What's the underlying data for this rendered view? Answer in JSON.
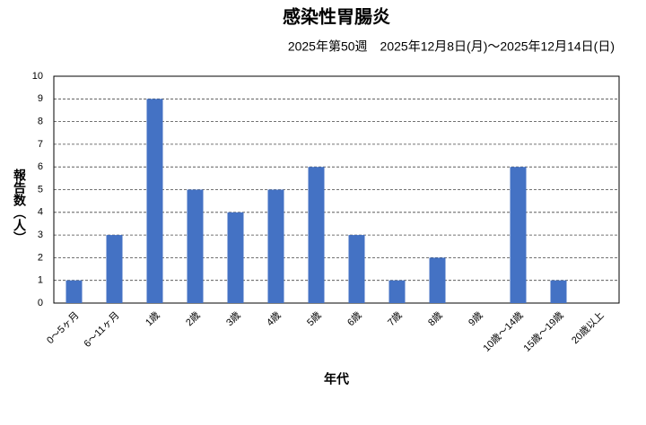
{
  "chart_data": {
    "type": "bar",
    "title": "感染性胃腸炎",
    "subtitle": "2025年第50週　2025年12月8日(月)～2025年12月14日(日)",
    "x_label": "年代",
    "y_label": "報告数（人）",
    "categories": [
      "0〜5ヶ月",
      "6〜11ヶ月",
      "1歳",
      "2歳",
      "3歳",
      "4歳",
      "5歳",
      "6歳",
      "7歳",
      "8歳",
      "9歳",
      "10歳〜14歳",
      "15歳〜19歳",
      "20歳以上"
    ],
    "values": [
      1,
      3,
      9,
      5,
      4,
      5,
      6,
      3,
      1,
      2,
      0,
      6,
      1,
      0
    ],
    "color": "#4472c4",
    "ylim": [
      0,
      10
    ],
    "yticks": [
      0,
      1,
      2,
      3,
      4,
      5,
      6,
      7,
      8,
      9,
      10
    ],
    "grid": true
  }
}
